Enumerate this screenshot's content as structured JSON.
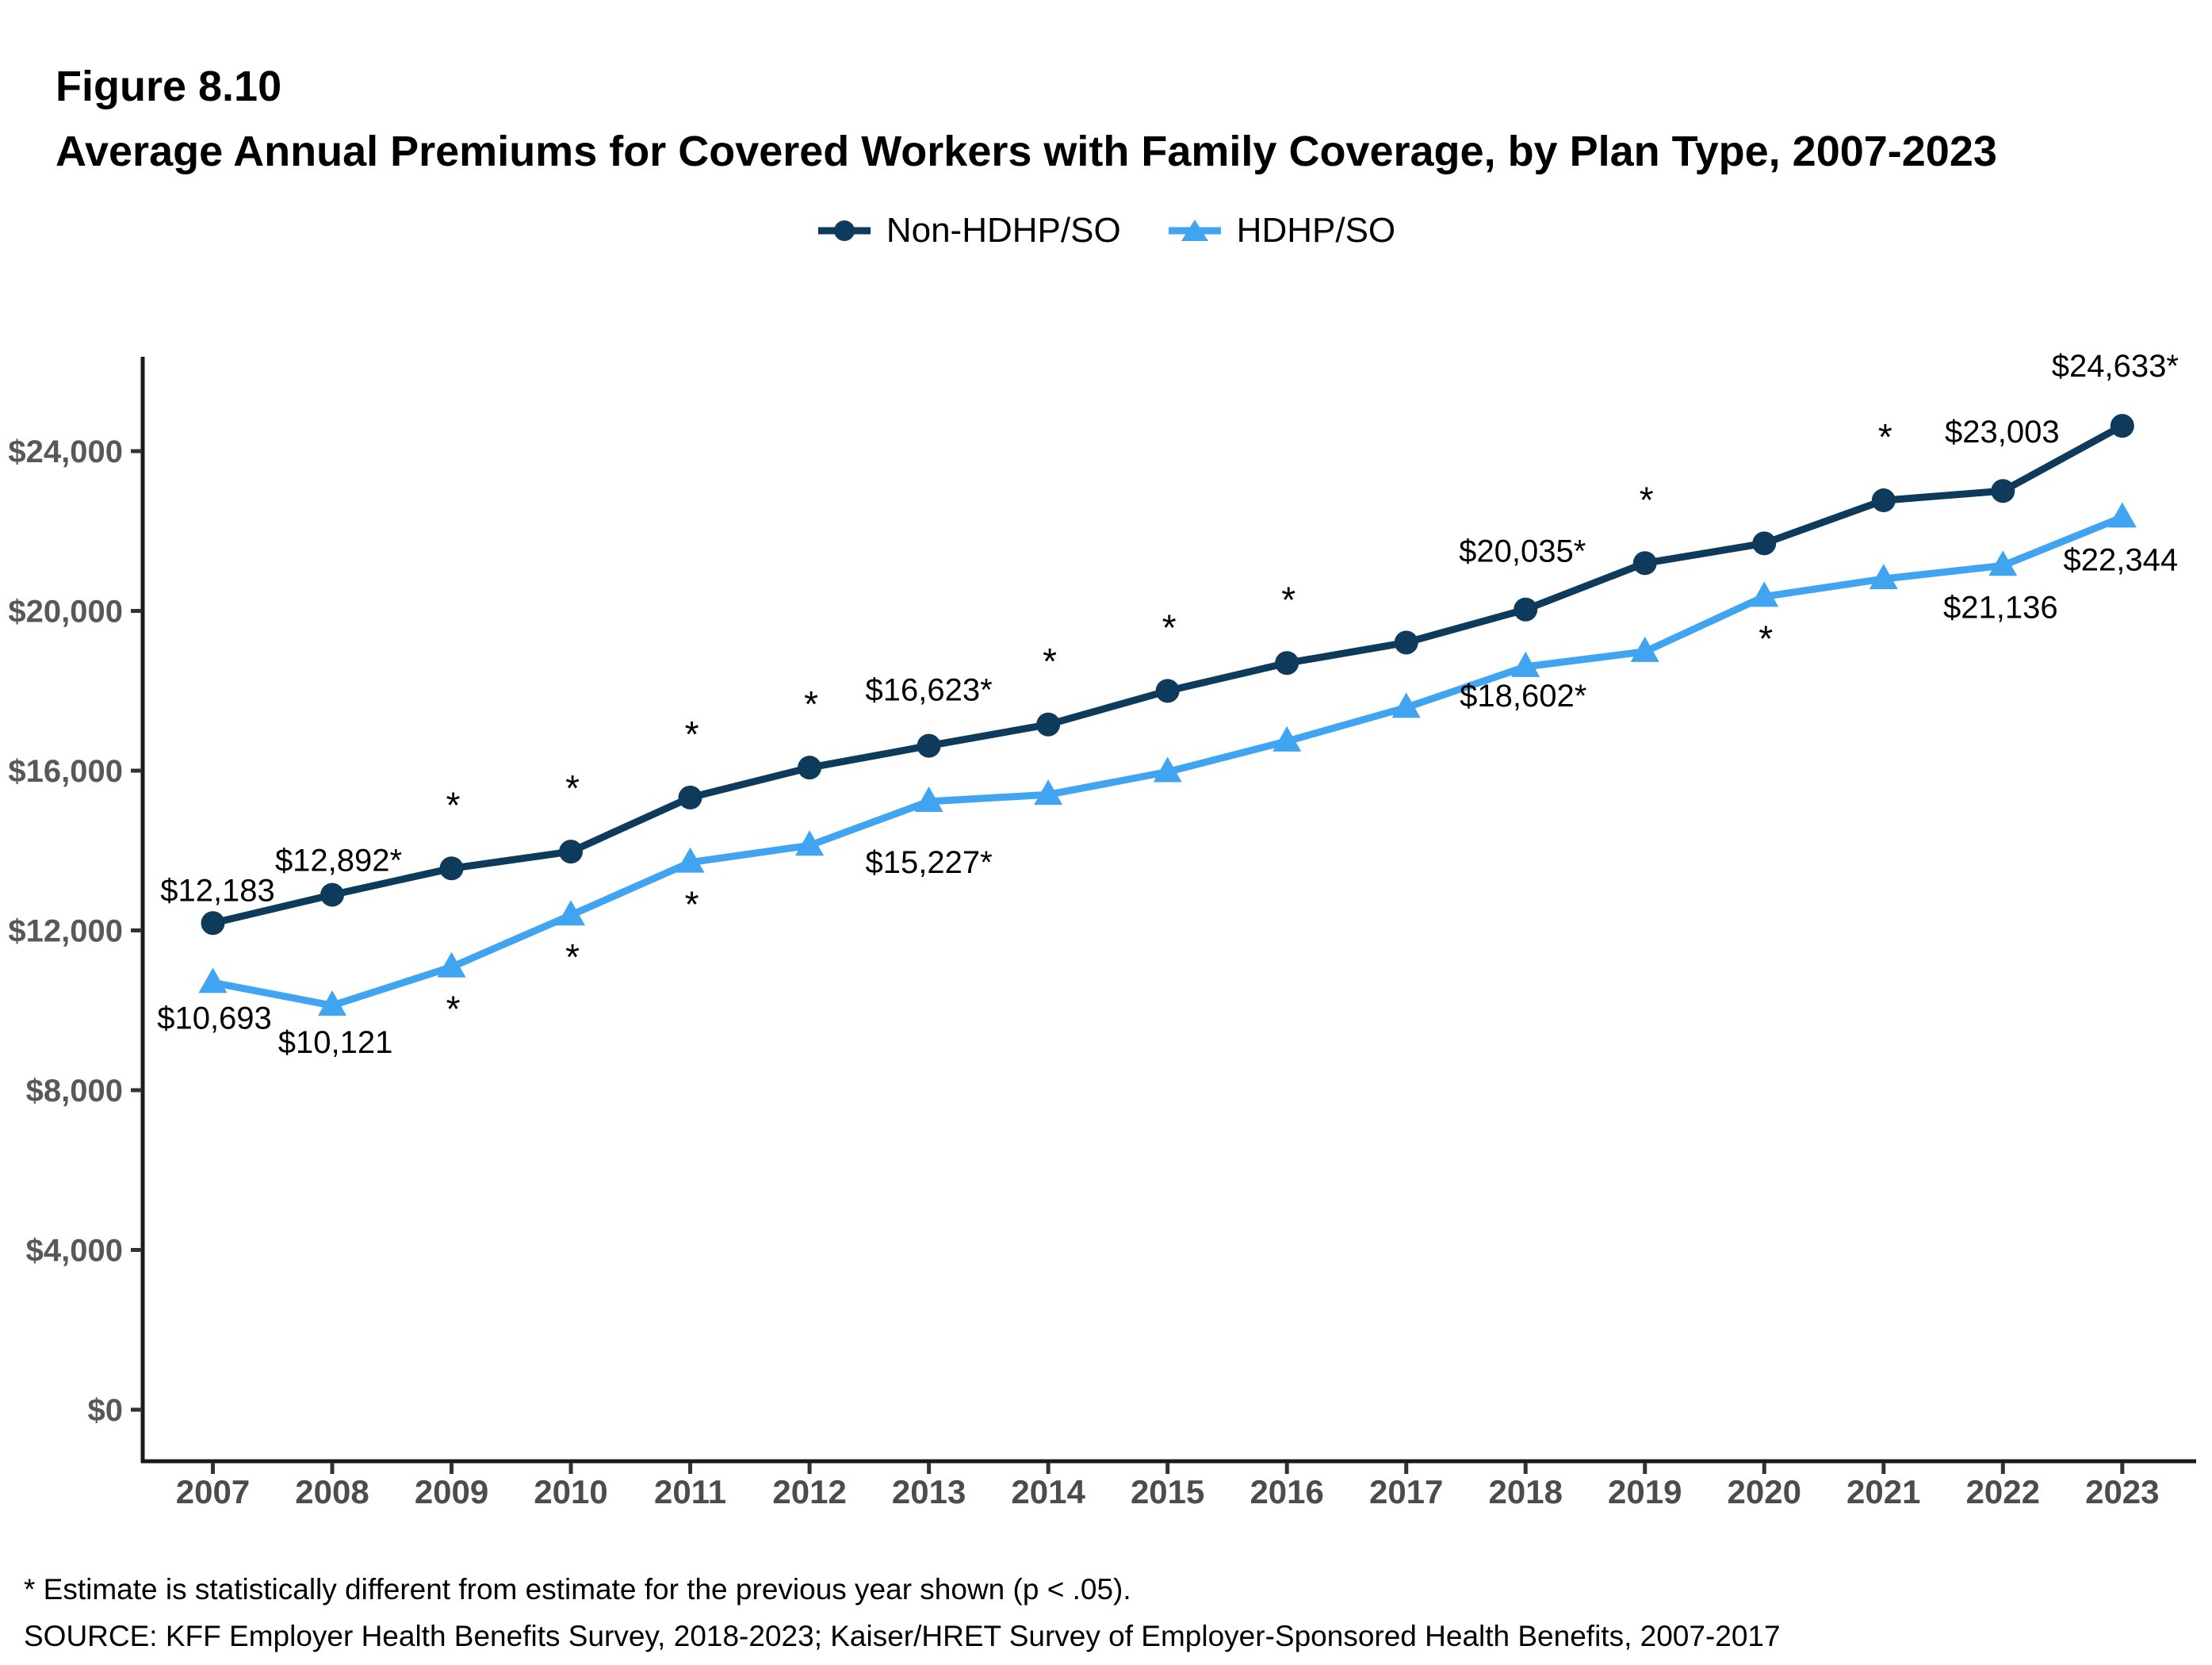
{
  "figure": {
    "number": "Figure 8.10",
    "title": "Average Annual Premiums for Covered Workers with Family Coverage, by Plan Type, 2007-2023"
  },
  "legend": {
    "items": [
      {
        "label": "Non-HDHP/SO",
        "marker": "circle",
        "color": "#0e3a5c"
      },
      {
        "label": "HDHP/SO",
        "marker": "triangle",
        "color": "#41a4f1"
      }
    ]
  },
  "chart_data": {
    "type": "line",
    "title": "Average Annual Premiums for Covered Workers with Family Coverage, by Plan Type, 2007-2023",
    "x": [
      "2007",
      "2008",
      "2009",
      "2010",
      "2011",
      "2012",
      "2013",
      "2014",
      "2015",
      "2016",
      "2017",
      "2018",
      "2019",
      "2020",
      "2021",
      "2022",
      "2023"
    ],
    "series": [
      {
        "name": "Non-HDHP/SO",
        "color": "#0e3a5c",
        "marker": "circle",
        "values": [
          12183,
          12892,
          13553,
          13973,
          15327,
          16076,
          16623,
          17156,
          17997,
          18694,
          19207,
          20035,
          21196,
          21691,
          22768,
          23003,
          24633
        ],
        "point_labels": [
          {
            "year": "2007",
            "text": "$12,183",
            "dx": 6,
            "dy": -28
          },
          {
            "year": "2008",
            "text": "$12,892*",
            "dx": 8,
            "dy": -30
          },
          {
            "year": "2013",
            "text": "$16,623*",
            "dx": 0,
            "dy": -57
          },
          {
            "year": "2018",
            "text": "$20,035*",
            "dx": -4,
            "dy": -60
          },
          {
            "year": "2022",
            "text": "$23,003",
            "dx": -1,
            "dy": -61
          },
          {
            "year": "2023",
            "text": "$24,633*",
            "dx": -9,
            "dy": -62
          }
        ],
        "sig_asterisk_above": [
          "2009",
          "2010",
          "2011",
          "2012",
          "2014",
          "2015",
          "2016",
          "2019",
          "2021"
        ],
        "sig_asterisk_below": []
      },
      {
        "name": "HDHP/SO",
        "color": "#41a4f1",
        "marker": "triangle",
        "values": [
          10693,
          10121,
          11083,
          12383,
          13704,
          14129,
          15227,
          15401,
          15970,
          16737,
          17581,
          18602,
          18980,
          20359,
          20802,
          21136,
          22344
        ],
        "point_labels": [
          {
            "year": "2007",
            "text": "$10,693",
            "dx": 2,
            "dy": 58
          },
          {
            "year": "2008",
            "text": "$10,121",
            "dx": 4,
            "dy": 60
          },
          {
            "year": "2013",
            "text": "$15,227*",
            "dx": 0,
            "dy": 90
          },
          {
            "year": "2018",
            "text": "$18,602*",
            "dx": -3,
            "dy": 50
          },
          {
            "year": "2022",
            "text": "$21,136",
            "dx": -3,
            "dy": 66
          },
          {
            "year": "2023",
            "text": "$22,344",
            "dx": -2,
            "dy": 67
          }
        ],
        "sig_asterisk_above": [],
        "sig_asterisk_below": [
          "2009",
          "2010",
          "2011",
          "2020"
        ]
      }
    ],
    "y_ticks": [
      {
        "value": 0,
        "label": "$0"
      },
      {
        "value": 4000,
        "label": "$4,000"
      },
      {
        "value": 8000,
        "label": "$8,000"
      },
      {
        "value": 12000,
        "label": "$12,000"
      },
      {
        "value": 16000,
        "label": "$16,000"
      },
      {
        "value": 20000,
        "label": "$20,000"
      },
      {
        "value": 24000,
        "label": "$24,000"
      }
    ],
    "ylim": [
      0,
      26300
    ],
    "ylabel": "",
    "xlabel": "",
    "grid": false,
    "legend_position": "top",
    "sig_marker": "*"
  },
  "colors": {
    "non_hdhp": "#0e3a5c",
    "hdhp": "#41a4f1",
    "axis": "#1a1a1a",
    "tick": "#333333",
    "y_tick_label": "#58585a",
    "year_label": "#4c4c4c"
  },
  "footnotes": [
    "* Estimate is statistically different from estimate for the previous year shown (p < .05).",
    "SOURCE: KFF Employer Health Benefits Survey, 2018-2023; Kaiser/HRET Survey of Employer-Sponsored Health Benefits, 2007-2017"
  ]
}
